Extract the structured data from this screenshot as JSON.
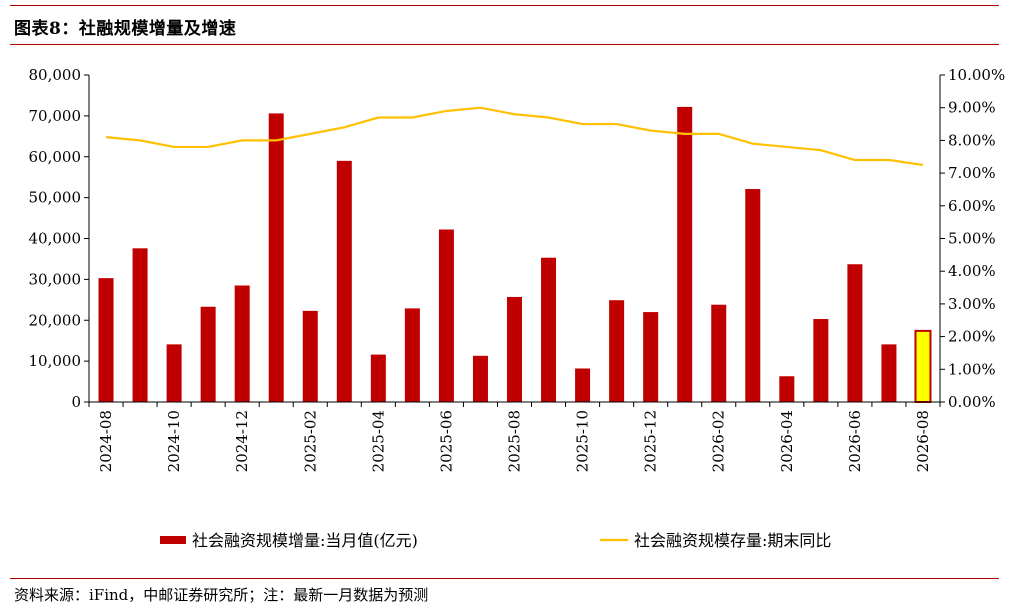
{
  "header": {
    "title": "图表8：社融规模增量及增速"
  },
  "footer": {
    "source": "资料来源：iFind，中邮证券研究所；注：最新一月数据为预测"
  },
  "colors": {
    "bar": "#C00000",
    "bar_forecast": "#FFFF00",
    "bar_forecast_border": "#C00000",
    "line": "#FFC000",
    "rule": "#B00000"
  },
  "chart_data": {
    "type": "bar",
    "categories": [
      "2024-08",
      "2024-09",
      "2024-10",
      "2024-11",
      "2024-12",
      "2025-01",
      "2025-02",
      "2025-03",
      "2025-04",
      "2025-05",
      "2025-06",
      "2025-07",
      "2025-08",
      "2025-09",
      "2025-10",
      "2025-11",
      "2025-12",
      "2026-01",
      "2026-02",
      "2026-03",
      "2026-04",
      "2026-05",
      "2026-06",
      "2026-07",
      "2026-08"
    ],
    "x_tick_labels": [
      "2024-08",
      "2024-10",
      "2024-12",
      "2025-02",
      "2025-04",
      "2025-06",
      "2025-08",
      "2025-10",
      "2025-12",
      "2026-02",
      "2026-04",
      "2026-06",
      "2026-08"
    ],
    "series": [
      {
        "name": "社会融资规模增量:当月值(亿元)",
        "type": "bar",
        "axis": "left",
        "values": [
          30300,
          37600,
          14100,
          23300,
          28500,
          70600,
          22300,
          59000,
          11600,
          22900,
          42200,
          11300,
          25700,
          35300,
          8200,
          24900,
          22000,
          72200,
          23800,
          52100,
          6300,
          20300,
          33700,
          14100,
          17400
        ],
        "forecast_last": true
      },
      {
        "name": "社会融资规模存量:期末同比",
        "type": "line",
        "axis": "right",
        "values": [
          8.1,
          8.0,
          7.8,
          7.8,
          8.0,
          8.0,
          8.2,
          8.4,
          8.7,
          8.7,
          8.9,
          9.0,
          8.8,
          8.7,
          8.5,
          8.5,
          8.3,
          8.2,
          8.2,
          7.9,
          7.8,
          7.7,
          7.4,
          7.4,
          7.25
        ]
      }
    ],
    "y_left": {
      "min": 0,
      "max": 80000,
      "ticks": [
        "0",
        "10,000",
        "20,000",
        "30,000",
        "40,000",
        "50,000",
        "60,000",
        "70,000",
        "80,000"
      ]
    },
    "y_right": {
      "min": 0,
      "max": 10,
      "ticks": [
        "0.00%",
        "1.00%",
        "2.00%",
        "3.00%",
        "4.00%",
        "5.00%",
        "6.00%",
        "7.00%",
        "8.00%",
        "9.00%",
        "10.00%"
      ]
    },
    "legend_position": "bottom",
    "grid": false
  }
}
